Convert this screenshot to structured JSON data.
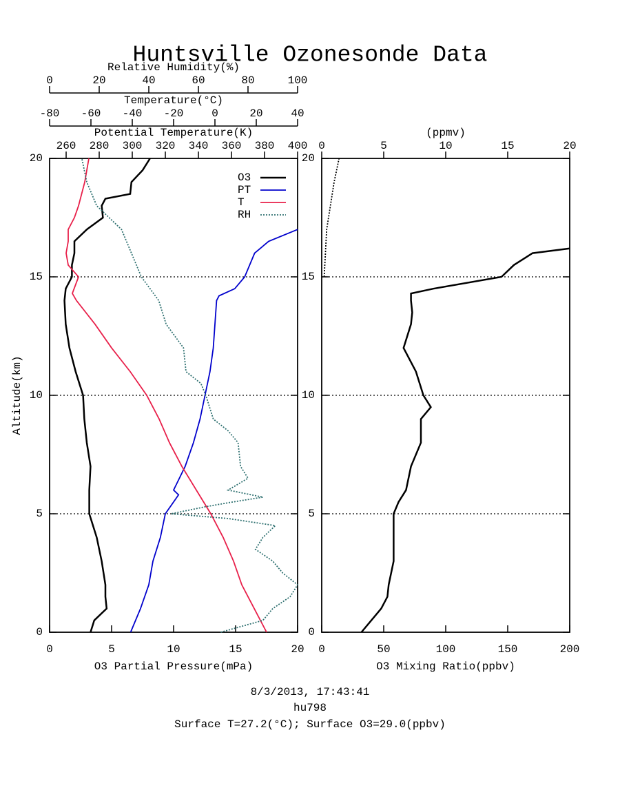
{
  "title": "Huntsville Ozonesonde Data",
  "footer": [
    "8/3/2013, 17:43:41",
    "hu798",
    "Surface T=27.2(°C); Surface O3=29.0(ppbv)"
  ],
  "chart_data": [
    {
      "type": "line",
      "ylabel": "Altitude(km)",
      "ylim": [
        0,
        20
      ],
      "yticks": [
        0,
        5,
        10,
        15,
        20
      ],
      "grid": true,
      "legend": "upper right",
      "xlabel": "O3 Partial Pressure(mPa)",
      "xlim": [
        0,
        20
      ],
      "xticks": [
        0,
        5,
        10,
        15,
        20
      ],
      "x2label": "Potential Temperature(K)",
      "x2lim": [
        250,
        400
      ],
      "x2ticks": [
        260,
        280,
        300,
        320,
        340,
        360,
        380,
        400
      ],
      "x3label": "Temperature(°C)",
      "x3lim": [
        -80,
        40
      ],
      "x3ticks": [
        -80,
        -60,
        -40,
        -20,
        0,
        20,
        40
      ],
      "x4label": "Relative Humidity(%)",
      "x4lim": [
        0,
        100
      ],
      "x4ticks": [
        0,
        20,
        40,
        60,
        80,
        100
      ],
      "series": [
        {
          "name": "O3",
          "color": "#000000",
          "axis": "x",
          "style": "solid",
          "altitude": [
            0,
            0.5,
            1,
            1.5,
            2,
            3,
            4,
            5,
            6,
            7,
            8,
            9,
            10,
            11,
            12,
            13,
            14,
            14.5,
            15,
            15.5,
            16,
            16.5,
            17,
            17.5,
            18,
            18.3,
            18.5,
            19,
            19.5,
            20
          ],
          "values": [
            3.3,
            3.6,
            4.6,
            4.5,
            4.5,
            4.2,
            3.8,
            3.2,
            3.2,
            3.3,
            3.0,
            2.8,
            2.7,
            2.1,
            1.6,
            1.3,
            1.2,
            1.3,
            1.8,
            1.8,
            2.0,
            2.0,
            3.0,
            4.3,
            4.2,
            4.5,
            6.5,
            6.6,
            7.5,
            8.1
          ]
        },
        {
          "name": "PT",
          "color": "#0000cc",
          "axis": "x2",
          "style": "dashdot",
          "altitude": [
            0,
            1,
            2,
            3,
            4,
            5,
            5.8,
            6,
            7,
            8,
            9,
            10,
            11,
            12,
            13,
            14,
            14.2,
            14.5,
            15,
            16,
            16.5,
            17
          ],
          "values": [
            299,
            305,
            310,
            312.5,
            317,
            320,
            328,
            325,
            332,
            337,
            341,
            344,
            347,
            349,
            350,
            351,
            352.5,
            362,
            368,
            374,
            382.5,
            400
          ]
        },
        {
          "name": "T",
          "color": "#e8204a",
          "axis": "x3",
          "style": "dashdot",
          "altitude": [
            0,
            1,
            2,
            3,
            4,
            5,
            6,
            7,
            8,
            9,
            10,
            11,
            12,
            13,
            14,
            14.3,
            15,
            15.5,
            16,
            16.5,
            17,
            17.5,
            18,
            19,
            20
          ],
          "values": [
            25,
            19,
            13,
            9,
            4,
            -2,
            -9,
            -16,
            -22,
            -27,
            -33,
            -41,
            -50,
            -58,
            -67,
            -69,
            -66,
            -71,
            -72,
            -71,
            -71,
            -68,
            -66,
            -63,
            -61
          ]
        },
        {
          "name": "RH",
          "color": "#2e7070",
          "axis": "x4",
          "style": "dotted",
          "altitude": [
            0,
            0.5,
            1,
            1.5,
            2,
            2.5,
            3,
            3.5,
            4,
            4.5,
            4.8,
            5,
            5.3,
            5.5,
            5.7,
            6,
            6.5,
            7,
            8,
            8.5,
            9,
            10,
            10.5,
            11,
            12,
            13,
            14,
            15,
            16,
            17,
            18,
            19,
            20
          ],
          "values": [
            69,
            86,
            90,
            97,
            100,
            94,
            90,
            83,
            86,
            91,
            72,
            49,
            63,
            74,
            86,
            72,
            80,
            77,
            76,
            72,
            66,
            63,
            61,
            55,
            54,
            47,
            44,
            37,
            33,
            29,
            19,
            15,
            13
          ]
        }
      ]
    },
    {
      "type": "line",
      "ylim": [
        0,
        20
      ],
      "yticks": [
        0,
        5,
        10,
        15,
        20
      ],
      "grid": true,
      "xlabel": "O3 Mixing Ratio(ppbv)",
      "xlim": [
        0,
        200
      ],
      "xticks": [
        0,
        50,
        100,
        150,
        200
      ],
      "x2label": "(ppmv)",
      "x2lim": [
        0,
        20
      ],
      "x2ticks": [
        0,
        5,
        10,
        15,
        20
      ],
      "series": [
        {
          "color": "#000000",
          "axis": "x",
          "style": "solid",
          "altitude": [
            0,
            0.5,
            1,
            1.5,
            2,
            3,
            4,
            5,
            5.5,
            6,
            7,
            8,
            9,
            9.5,
            10,
            11,
            12,
            13,
            13.5,
            14,
            14.3,
            14.5,
            15,
            15.5,
            16,
            16.2
          ],
          "values": [
            32,
            40,
            48,
            53,
            54,
            58,
            58,
            58,
            62,
            68,
            72,
            80,
            80,
            88,
            82,
            76,
            66,
            72,
            73,
            72,
            72,
            90,
            145,
            155,
            170,
            200
          ]
        },
        {
          "color": "#000000",
          "axis": "x2",
          "style": "dotted",
          "altitude": [
            15,
            16,
            17,
            18,
            19,
            20
          ],
          "values": [
            0.2,
            0.3,
            0.4,
            0.7,
            1.0,
            1.4
          ]
        }
      ]
    }
  ]
}
